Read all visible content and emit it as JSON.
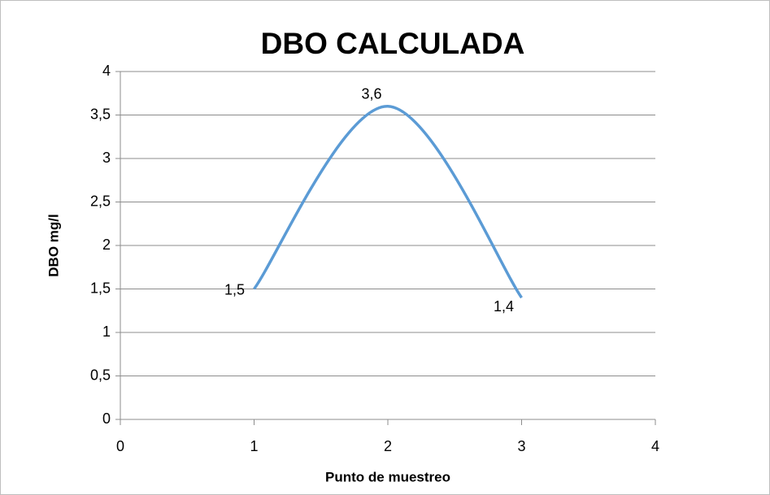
{
  "chart_data": {
    "type": "line",
    "title": "DBO CALCULADA",
    "x_label": "Punto de muestreo",
    "y_label": "DBO mg/l",
    "x": [
      1,
      2,
      3
    ],
    "values": [
      1.5,
      3.6,
      1.4
    ],
    "value_labels": [
      "1,5",
      "3,6",
      "1,4"
    ],
    "color": "#5b9bd5",
    "smooth": true,
    "xlim": [
      0,
      4
    ],
    "xticks": [
      0,
      1,
      2,
      3,
      4
    ],
    "ylim": [
      0,
      4
    ],
    "yticks": [
      0,
      {
        "value": 0.5,
        "label": "0,5"
      },
      1,
      {
        "value": 1.5,
        "label": "1,5"
      },
      2,
      {
        "value": 2.5,
        "label": "2,5"
      },
      3,
      {
        "value": 3.5,
        "label": "3,5"
      },
      4
    ],
    "grid": true
  }
}
